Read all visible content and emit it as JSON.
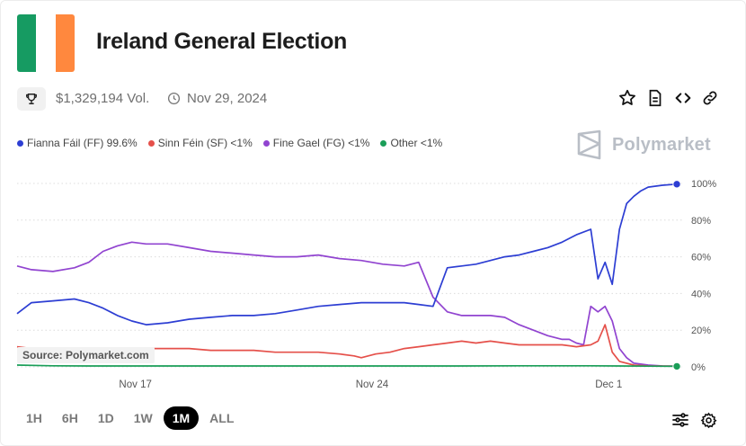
{
  "header": {
    "title": "Ireland General Election",
    "flag_colors": [
      "#169b62",
      "#ffffff",
      "#ff883e"
    ]
  },
  "meta": {
    "volume": "$1,329,194 Vol.",
    "date": "Nov 29, 2024"
  },
  "icons": {
    "trophy": "trophy-icon",
    "clock": "clock-icon",
    "star": "star-icon",
    "document": "document-icon",
    "embed": "embed-icon",
    "link": "link-icon",
    "filters": "sliders-icon",
    "settings": "gear-icon",
    "brand": "polymarket-logo-icon"
  },
  "legend": [
    {
      "label": "Fianna Fáil (FF) 99.6%",
      "color": "#2d3ed3"
    },
    {
      "label": "Sinn Féin (SF) <1%",
      "color": "#e5504a"
    },
    {
      "label": "Fine Gael (FG) <1%",
      "color": "#9144d0"
    },
    {
      "label": "Other <1%",
      "color": "#1a9e58"
    }
  ],
  "brand": "Polymarket",
  "source": "Source: Polymarket.com",
  "ranges": [
    "1H",
    "6H",
    "1D",
    "1W",
    "1M",
    "ALL"
  ],
  "active_range": "1M",
  "chart_data": {
    "type": "line",
    "x_ticks": [
      {
        "t": 16.5,
        "label": "Nov 17"
      },
      {
        "t": 49.5,
        "label": "Nov 24"
      },
      {
        "t": 82.5,
        "label": "Dec 1"
      }
    ],
    "x_range": [
      0,
      93
    ],
    "ylim": [
      0,
      100
    ],
    "y_ticks": [
      0,
      20,
      40,
      60,
      80,
      100
    ],
    "y_tick_labels": [
      "0%",
      "20%",
      "40%",
      "60%",
      "80%",
      "100%"
    ],
    "grid": true,
    "series": [
      {
        "name": "Fine Gael (FG)",
        "color": "#9144d0",
        "points": [
          [
            0,
            55
          ],
          [
            2,
            53
          ],
          [
            5,
            52
          ],
          [
            8,
            54
          ],
          [
            10,
            57
          ],
          [
            12,
            63
          ],
          [
            14,
            66
          ],
          [
            16,
            68
          ],
          [
            18,
            67
          ],
          [
            21,
            67
          ],
          [
            24,
            65
          ],
          [
            27,
            63
          ],
          [
            30,
            62
          ],
          [
            33,
            61
          ],
          [
            36,
            60
          ],
          [
            39,
            60
          ],
          [
            42,
            61
          ],
          [
            45,
            59
          ],
          [
            48,
            58
          ],
          [
            51,
            56
          ],
          [
            54,
            55
          ],
          [
            56,
            57
          ],
          [
            58,
            38
          ],
          [
            60,
            30
          ],
          [
            62,
            28
          ],
          [
            64,
            28
          ],
          [
            66,
            28
          ],
          [
            68,
            27
          ],
          [
            70,
            23
          ],
          [
            72,
            20
          ],
          [
            74,
            17
          ],
          [
            76,
            15
          ],
          [
            77,
            15
          ],
          [
            78,
            13
          ],
          [
            79,
            12
          ],
          [
            80,
            33
          ],
          [
            81,
            30
          ],
          [
            82,
            33
          ],
          [
            83,
            25
          ],
          [
            84,
            10
          ],
          [
            85,
            5
          ],
          [
            86,
            2
          ],
          [
            88,
            1
          ],
          [
            90,
            0.5
          ],
          [
            92,
            0.4
          ]
        ]
      },
      {
        "name": "Fianna Fáil (FF)",
        "color": "#2d3ed3",
        "points": [
          [
            0,
            29
          ],
          [
            2,
            35
          ],
          [
            5,
            36
          ],
          [
            8,
            37
          ],
          [
            10,
            35
          ],
          [
            12,
            32
          ],
          [
            14,
            28
          ],
          [
            16,
            25
          ],
          [
            18,
            23
          ],
          [
            21,
            24
          ],
          [
            24,
            26
          ],
          [
            27,
            27
          ],
          [
            30,
            28
          ],
          [
            33,
            28
          ],
          [
            36,
            29
          ],
          [
            39,
            31
          ],
          [
            42,
            33
          ],
          [
            45,
            34
          ],
          [
            48,
            35
          ],
          [
            51,
            35
          ],
          [
            54,
            35
          ],
          [
            56,
            34
          ],
          [
            58,
            33
          ],
          [
            60,
            54
          ],
          [
            62,
            55
          ],
          [
            64,
            56
          ],
          [
            66,
            58
          ],
          [
            68,
            60
          ],
          [
            70,
            61
          ],
          [
            72,
            63
          ],
          [
            74,
            65
          ],
          [
            76,
            68
          ],
          [
            78,
            72
          ],
          [
            80,
            75
          ],
          [
            81,
            48
          ],
          [
            82,
            57
          ],
          [
            83,
            45
          ],
          [
            84,
            75
          ],
          [
            85,
            89
          ],
          [
            86,
            93
          ],
          [
            87,
            96
          ],
          [
            88,
            98
          ],
          [
            90,
            99
          ],
          [
            92,
            99.6
          ]
        ]
      },
      {
        "name": "Sinn Féin (SF)",
        "color": "#e5504a",
        "points": [
          [
            0,
            11
          ],
          [
            2,
            10
          ],
          [
            5,
            10
          ],
          [
            8,
            9
          ],
          [
            10,
            9
          ],
          [
            12,
            8
          ],
          [
            15,
            9
          ],
          [
            18,
            10
          ],
          [
            21,
            10
          ],
          [
            24,
            10
          ],
          [
            27,
            9
          ],
          [
            30,
            9
          ],
          [
            33,
            9
          ],
          [
            36,
            8
          ],
          [
            39,
            8
          ],
          [
            42,
            8
          ],
          [
            45,
            7
          ],
          [
            47,
            6
          ],
          [
            48,
            5
          ],
          [
            50,
            7
          ],
          [
            52,
            8
          ],
          [
            54,
            10
          ],
          [
            56,
            11
          ],
          [
            58,
            12
          ],
          [
            60,
            13
          ],
          [
            62,
            14
          ],
          [
            64,
            13
          ],
          [
            66,
            14
          ],
          [
            68,
            13
          ],
          [
            70,
            12
          ],
          [
            72,
            12
          ],
          [
            74,
            12
          ],
          [
            76,
            12
          ],
          [
            78,
            11
          ],
          [
            80,
            12
          ],
          [
            81,
            14
          ],
          [
            82,
            23
          ],
          [
            83,
            8
          ],
          [
            84,
            3
          ],
          [
            86,
            1
          ],
          [
            88,
            0.5
          ],
          [
            92,
            0.4
          ]
        ]
      },
      {
        "name": "Other",
        "color": "#1a9e58",
        "points": [
          [
            0,
            1
          ],
          [
            5,
            0.6
          ],
          [
            10,
            0.5
          ],
          [
            20,
            0.5
          ],
          [
            30,
            0.5
          ],
          [
            40,
            0.5
          ],
          [
            50,
            0.5
          ],
          [
            60,
            0.5
          ],
          [
            70,
            0.6
          ],
          [
            80,
            0.6
          ],
          [
            84,
            0.5
          ],
          [
            88,
            0.4
          ],
          [
            92,
            0.3
          ]
        ]
      }
    ]
  }
}
